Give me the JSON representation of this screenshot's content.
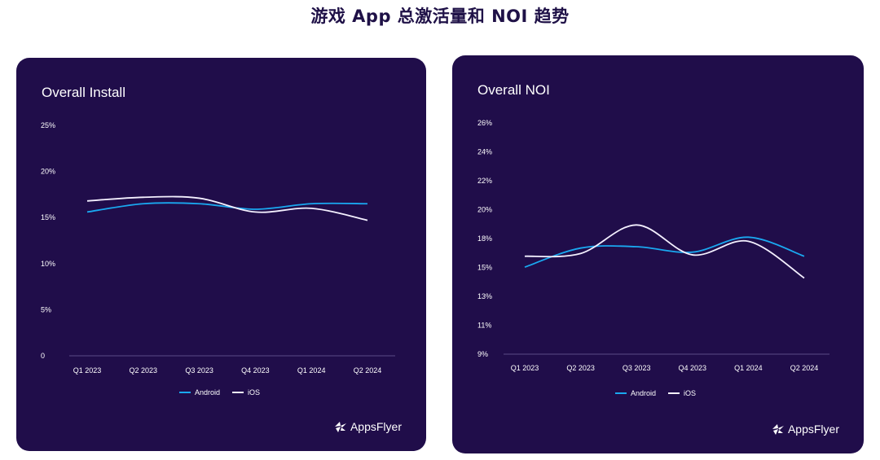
{
  "page": {
    "title": "游戏 App 总激活量和 NOI 趋势"
  },
  "colors": {
    "android": "#1aa8f0",
    "ios": "#f4f0ff",
    "card_bg": "#200d4a",
    "title": "#1f1147"
  },
  "brand": {
    "name": "AppsFlyer",
    "icon": "appsflyer-logo-icon"
  },
  "chart_data": [
    {
      "type": "line",
      "title": "Overall Install",
      "categories": [
        "Q1 2023",
        "Q2 2023",
        "Q3 2023",
        "Q4 2023",
        "Q1 2024",
        "Q2 2024"
      ],
      "y_ticks": [
        "0",
        "5%",
        "10%",
        "15%",
        "20%",
        "25%"
      ],
      "ylim": [
        0,
        25
      ],
      "series": [
        {
          "name": "Android",
          "values": [
            15.6,
            16.5,
            16.5,
            15.9,
            16.5,
            16.5
          ]
        },
        {
          "name": "iOS",
          "values": [
            16.8,
            17.2,
            17.1,
            15.6,
            16.0,
            14.7
          ]
        }
      ],
      "legend": "bottom-center",
      "grid": false
    },
    {
      "type": "line",
      "title": "Overall NOI",
      "categories": [
        "Q1 2023",
        "Q2 2023",
        "Q3 2023",
        "Q4 2023",
        "Q1 2024",
        "Q2 2024"
      ],
      "y_ticks": [
        "9%",
        "11%",
        "13%",
        "15%",
        "18%",
        "20%",
        "22%",
        "24%",
        "26%"
      ],
      "ylim": [
        9,
        26
      ],
      "series": [
        {
          "name": "Android",
          "values": [
            15.4,
            16.8,
            16.9,
            16.5,
            17.6,
            16.2
          ]
        },
        {
          "name": "iOS",
          "values": [
            16.2,
            16.4,
            18.5,
            16.3,
            17.3,
            14.6
          ]
        }
      ],
      "legend": "bottom-center",
      "grid": false
    }
  ]
}
